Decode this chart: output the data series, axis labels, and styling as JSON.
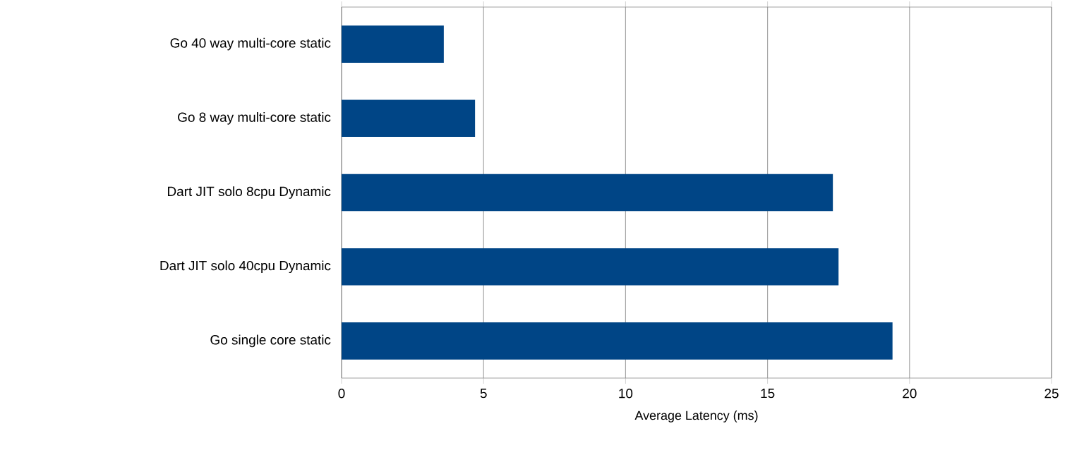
{
  "chart_data": {
    "type": "bar",
    "orientation": "horizontal",
    "xlabel": "Average Latency (ms)",
    "categories": [
      "Go 40 way multi-core static",
      "Go 8 way multi-core static",
      "Dart JIT solo 8cpu Dynamic",
      "Dart JIT solo 40cpu Dynamic",
      "Go single core static"
    ],
    "values": [
      3.6,
      4.7,
      17.3,
      17.5,
      19.4
    ],
    "color": "#004586",
    "xlim": [
      0,
      25
    ],
    "xticks": [
      0,
      5,
      10,
      15,
      20,
      25
    ],
    "grid": "x"
  }
}
